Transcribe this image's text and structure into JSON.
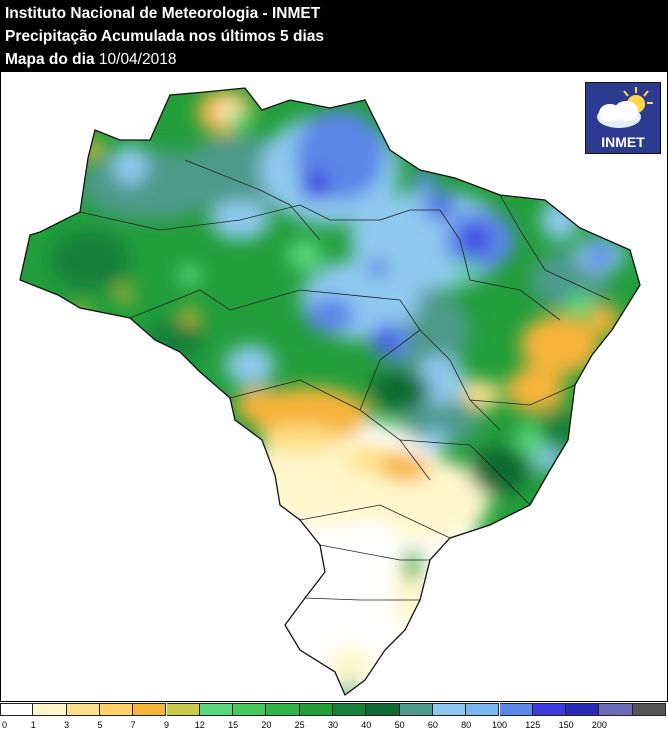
{
  "header": {
    "institute": "Instituto Nacional de Meteorologia - INMET",
    "product": "Precipitação Acumulada nos últimos 5 dias",
    "date_label": "Mapa do dia",
    "date": "10/04/2018"
  },
  "logo": {
    "text": "INMET",
    "icon": "sun-cloud-icon"
  },
  "legend": {
    "ticks": [
      "0",
      "1",
      "3",
      "5",
      "7",
      "9",
      "12",
      "15",
      "20",
      "25",
      "30",
      "40",
      "50",
      "60",
      "80",
      "100",
      "125",
      "150",
      "200"
    ],
    "colors": [
      "#ffffff",
      "#fff7cc",
      "#ffe08a",
      "#ffd166",
      "#f7b43a",
      "#c9c94a",
      "#5ad97a",
      "#45c95e",
      "#2fb34a",
      "#229e3b",
      "#17803a",
      "#0f6b33",
      "#4d9a8a",
      "#8ec9ef",
      "#7ab7f0",
      "#5c86e8",
      "#3b3be0",
      "#2a2ab8",
      "#6b6bb8",
      "#555555"
    ]
  },
  "map": {
    "colors": {
      "dry": "#fff7cc",
      "light_yellow": "#ffe08a",
      "orange": "#f7b43a",
      "light_green": "#5ad97a",
      "green": "#2fb34a",
      "dark_green": "#17803a",
      "teal": "#4d9a8a",
      "light_blue": "#8ec9ef",
      "blue": "#5c86e8",
      "dark_blue": "#3b3be0"
    }
  }
}
